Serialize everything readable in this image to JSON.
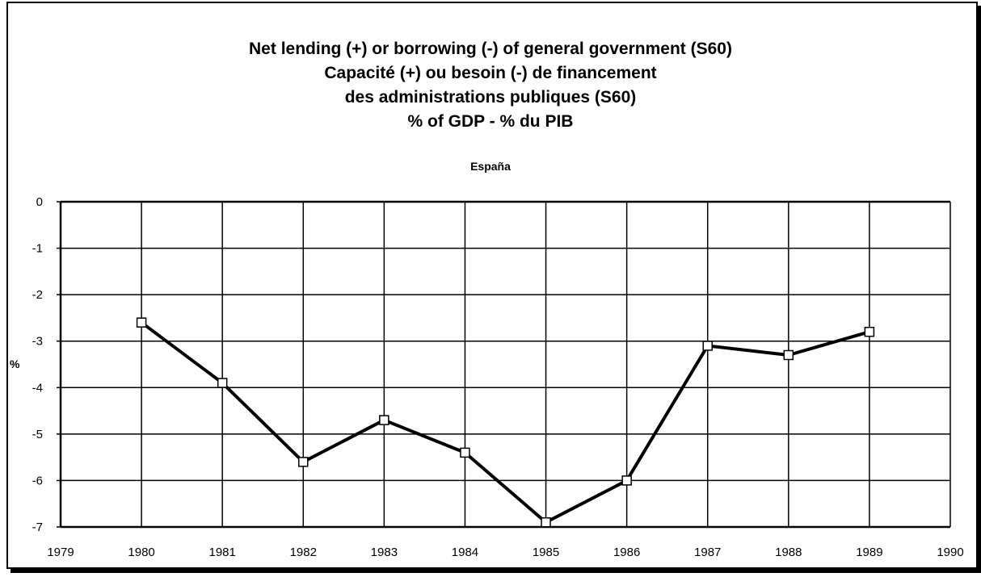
{
  "chart_data": {
    "type": "line",
    "title_lines": [
      "Net lending (+) or borrowing (-) of general government (S60)",
      "Capacité (+) ou besoin (-) de financement",
      "des administrations publiques (S60)",
      "% of GDP  - % du PIB"
    ],
    "subtitle": "España",
    "ylabel": "%",
    "xlabel": "",
    "xlim": [
      1979,
      1990
    ],
    "ylim": [
      -7,
      0
    ],
    "x_ticks": [
      1979,
      1980,
      1981,
      1982,
      1983,
      1984,
      1985,
      1986,
      1987,
      1988,
      1989,
      1990
    ],
    "y_ticks": [
      0,
      -1,
      -2,
      -3,
      -4,
      -5,
      -6,
      -7
    ],
    "grid": true,
    "legend": "none",
    "series": [
      {
        "x": [
          1980,
          1981,
          1982,
          1983,
          1984,
          1985,
          1986,
          1987,
          1988,
          1989
        ],
        "values": [
          -2.6,
          -3.9,
          -5.6,
          -4.7,
          -5.4,
          -6.9,
          -6.0,
          -3.1,
          -3.3,
          -2.8
        ],
        "color": "#000000",
        "marker": "open-square"
      }
    ]
  }
}
